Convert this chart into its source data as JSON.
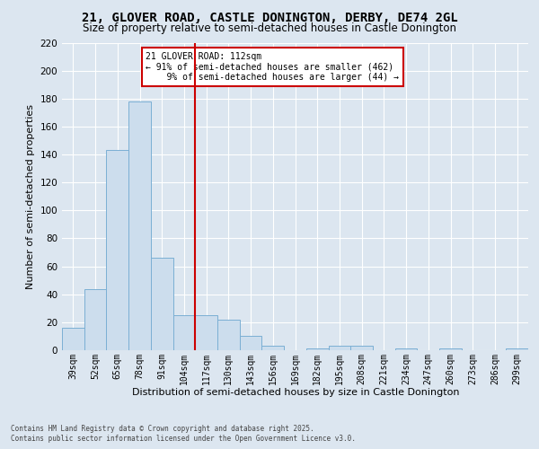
{
  "title_line1": "21, GLOVER ROAD, CASTLE DONINGTON, DERBY, DE74 2GL",
  "title_line2": "Size of property relative to semi-detached houses in Castle Donington",
  "xlabel": "Distribution of semi-detached houses by size in Castle Donington",
  "ylabel": "Number of semi-detached properties",
  "categories": [
    "39sqm",
    "52sqm",
    "65sqm",
    "78sqm",
    "91sqm",
    "104sqm",
    "117sqm",
    "130sqm",
    "143sqm",
    "156sqm",
    "169sqm",
    "182sqm",
    "195sqm",
    "208sqm",
    "221sqm",
    "234sqm",
    "247sqm",
    "260sqm",
    "273sqm",
    "286sqm",
    "299sqm"
  ],
  "values": [
    16,
    44,
    143,
    178,
    66,
    25,
    25,
    22,
    10,
    3,
    0,
    1,
    3,
    3,
    0,
    1,
    0,
    1,
    0,
    0,
    1
  ],
  "bar_color": "#ccdded",
  "bar_edge_color": "#7bafd4",
  "ylim": [
    0,
    220
  ],
  "yticks": [
    0,
    20,
    40,
    60,
    80,
    100,
    120,
    140,
    160,
    180,
    200,
    220
  ],
  "vline_after_index": 5,
  "vline_color": "#cc0000",
  "annotation_line1": "21 GLOVER ROAD: 112sqm",
  "annotation_line2": "← 91% of semi-detached houses are smaller (462)",
  "annotation_line3": "    9% of semi-detached houses are larger (44) →",
  "annotation_box_color": "#cc0000",
  "background_color": "#dce6f0",
  "footer_line1": "Contains HM Land Registry data © Crown copyright and database right 2025.",
  "footer_line2": "Contains public sector information licensed under the Open Government Licence v3.0."
}
